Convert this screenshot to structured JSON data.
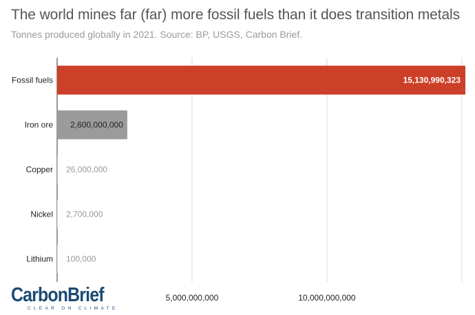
{
  "header": {
    "title": "The world mines far (far) more fossil fuels than it does transition metals",
    "subtitle": "Tonnes produced globally in 2021. Source: BP, USGS, Carbon Brief."
  },
  "logo": {
    "name": "CarbonBrief",
    "tagline": "CLEAR ON CLIMATE"
  },
  "colors": {
    "fossil": "#cc3f28",
    "iron": "#9b9b9b",
    "small": "#c4c4c4",
    "grid": "#d9d9d9",
    "label_light": "#999999",
    "label_dark": "#222222",
    "label_white": "#ffffff"
  },
  "chart_data": {
    "type": "bar",
    "orientation": "horizontal",
    "categories": [
      "Fossil fuels",
      "Iron ore",
      "Copper",
      "Nickel",
      "Lithium"
    ],
    "values": [
      15130990323,
      2600000000,
      26000000,
      2700000,
      100000
    ],
    "value_labels": [
      "15,130,990,323",
      "2,600,000,000",
      "26,000,000",
      "2,700,000",
      "100,000"
    ],
    "xlim": [
      0,
      15130990323
    ],
    "xticks": [
      5000000000,
      10000000000,
      15000000000
    ],
    "xtick_labels": [
      "5,000,000,000",
      "10,000,000,000",
      ""
    ],
    "grid": true,
    "legend": "none"
  }
}
